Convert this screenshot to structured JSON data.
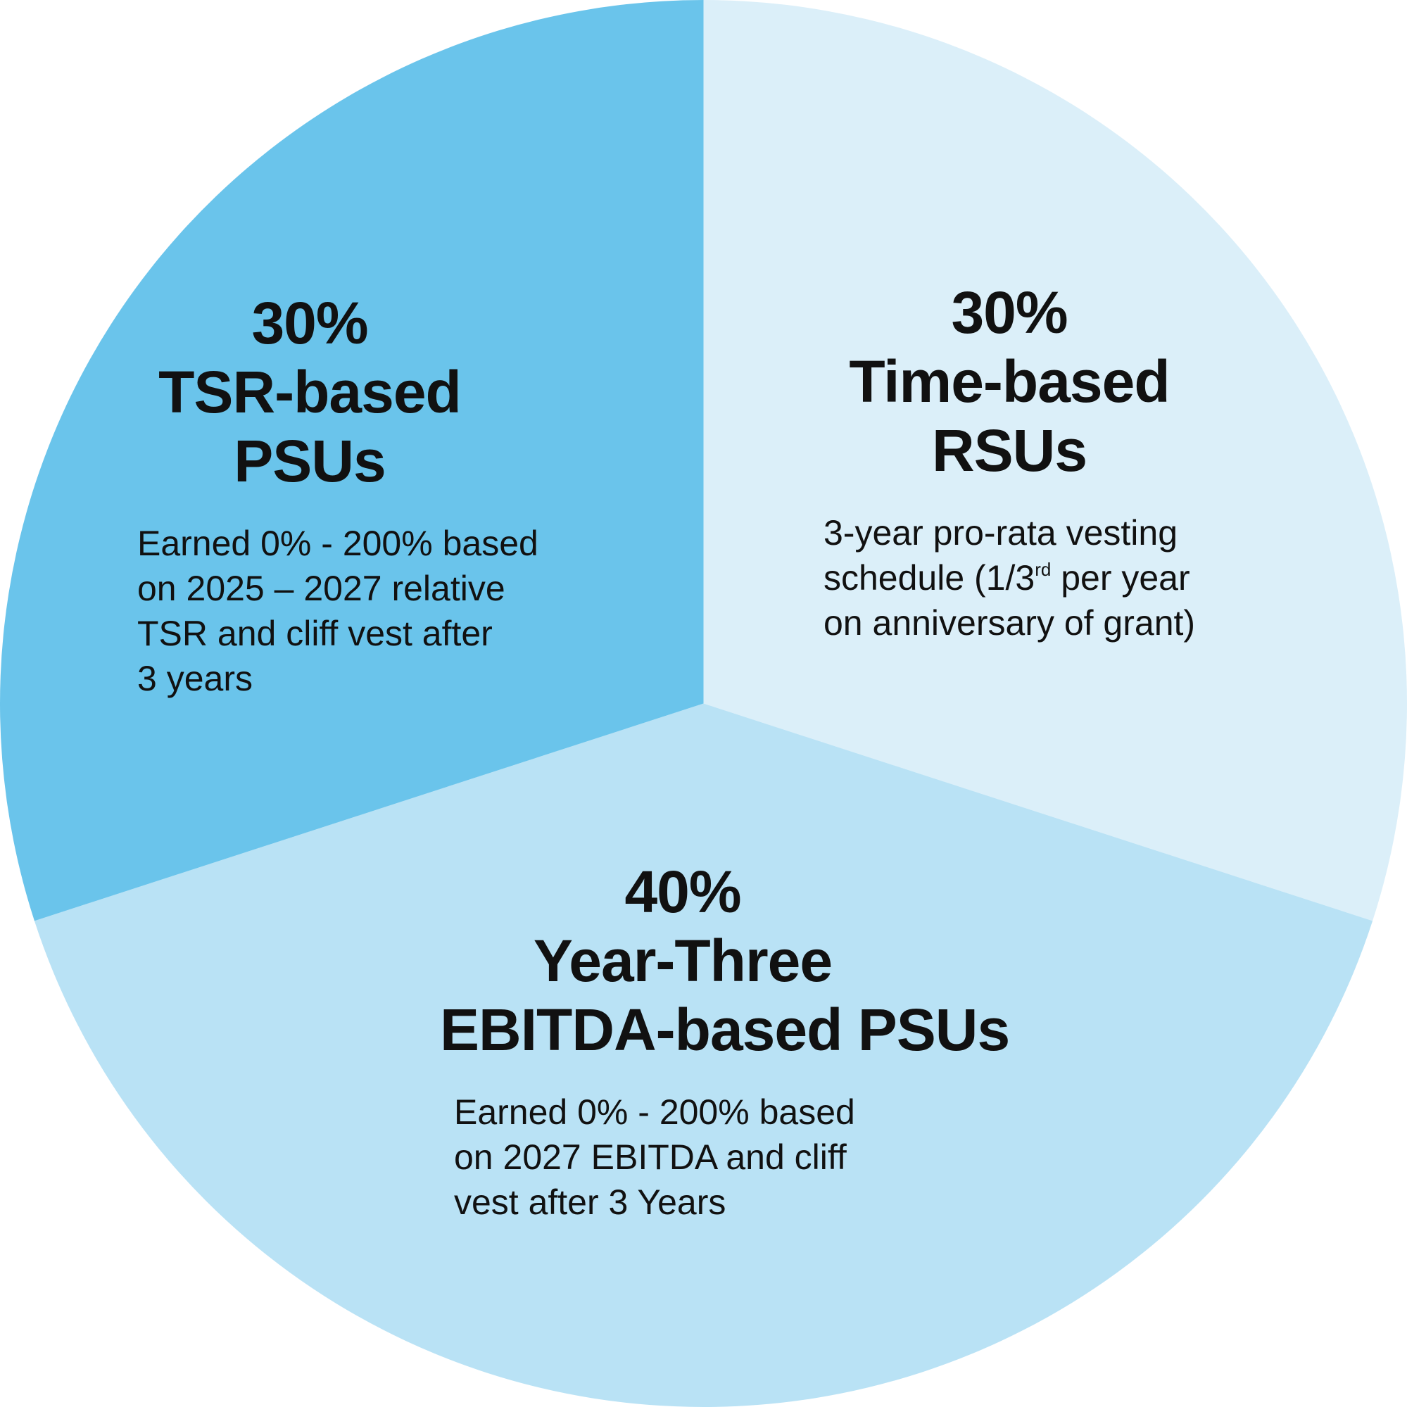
{
  "chart_data": {
    "type": "pie",
    "start_angle_deg": 0,
    "direction": "clockwise",
    "slices": [
      {
        "percent_label": "30%",
        "name_lines": [
          "Time-based",
          "RSUs"
        ],
        "description_lines": [
          {
            "parts": [
              "3-year pro-rata vesting"
            ]
          },
          {
            "parts": [
              "schedule (1/3",
              "rd",
              " per year"
            ]
          },
          {
            "parts": [
              "on anniversary of grant)"
            ]
          }
        ],
        "value": 30,
        "color": "#dbeff9"
      },
      {
        "percent_label": "40%",
        "name_lines": [
          "Year-Three",
          "EBITDA-based PSUs"
        ],
        "description_lines": [
          {
            "parts": [
              "Earned 0% - 200% based"
            ]
          },
          {
            "parts": [
              "on 2027 EBITDA and cliff"
            ]
          },
          {
            "parts": [
              "vest after 3 Years"
            ]
          }
        ],
        "value": 40,
        "color": "#b9e2f5"
      },
      {
        "percent_label": "30%",
        "name_lines": [
          "TSR-based",
          "PSUs"
        ],
        "description_lines": [
          {
            "parts": [
              "Earned 0% - 200% based"
            ]
          },
          {
            "parts": [
              "on 2025 – 2027 relative"
            ]
          },
          {
            "parts": [
              "TSR and cliff vest after"
            ]
          },
          {
            "parts": [
              "3 years"
            ]
          }
        ],
        "value": 30,
        "color": "#6ac4eb"
      }
    ]
  }
}
